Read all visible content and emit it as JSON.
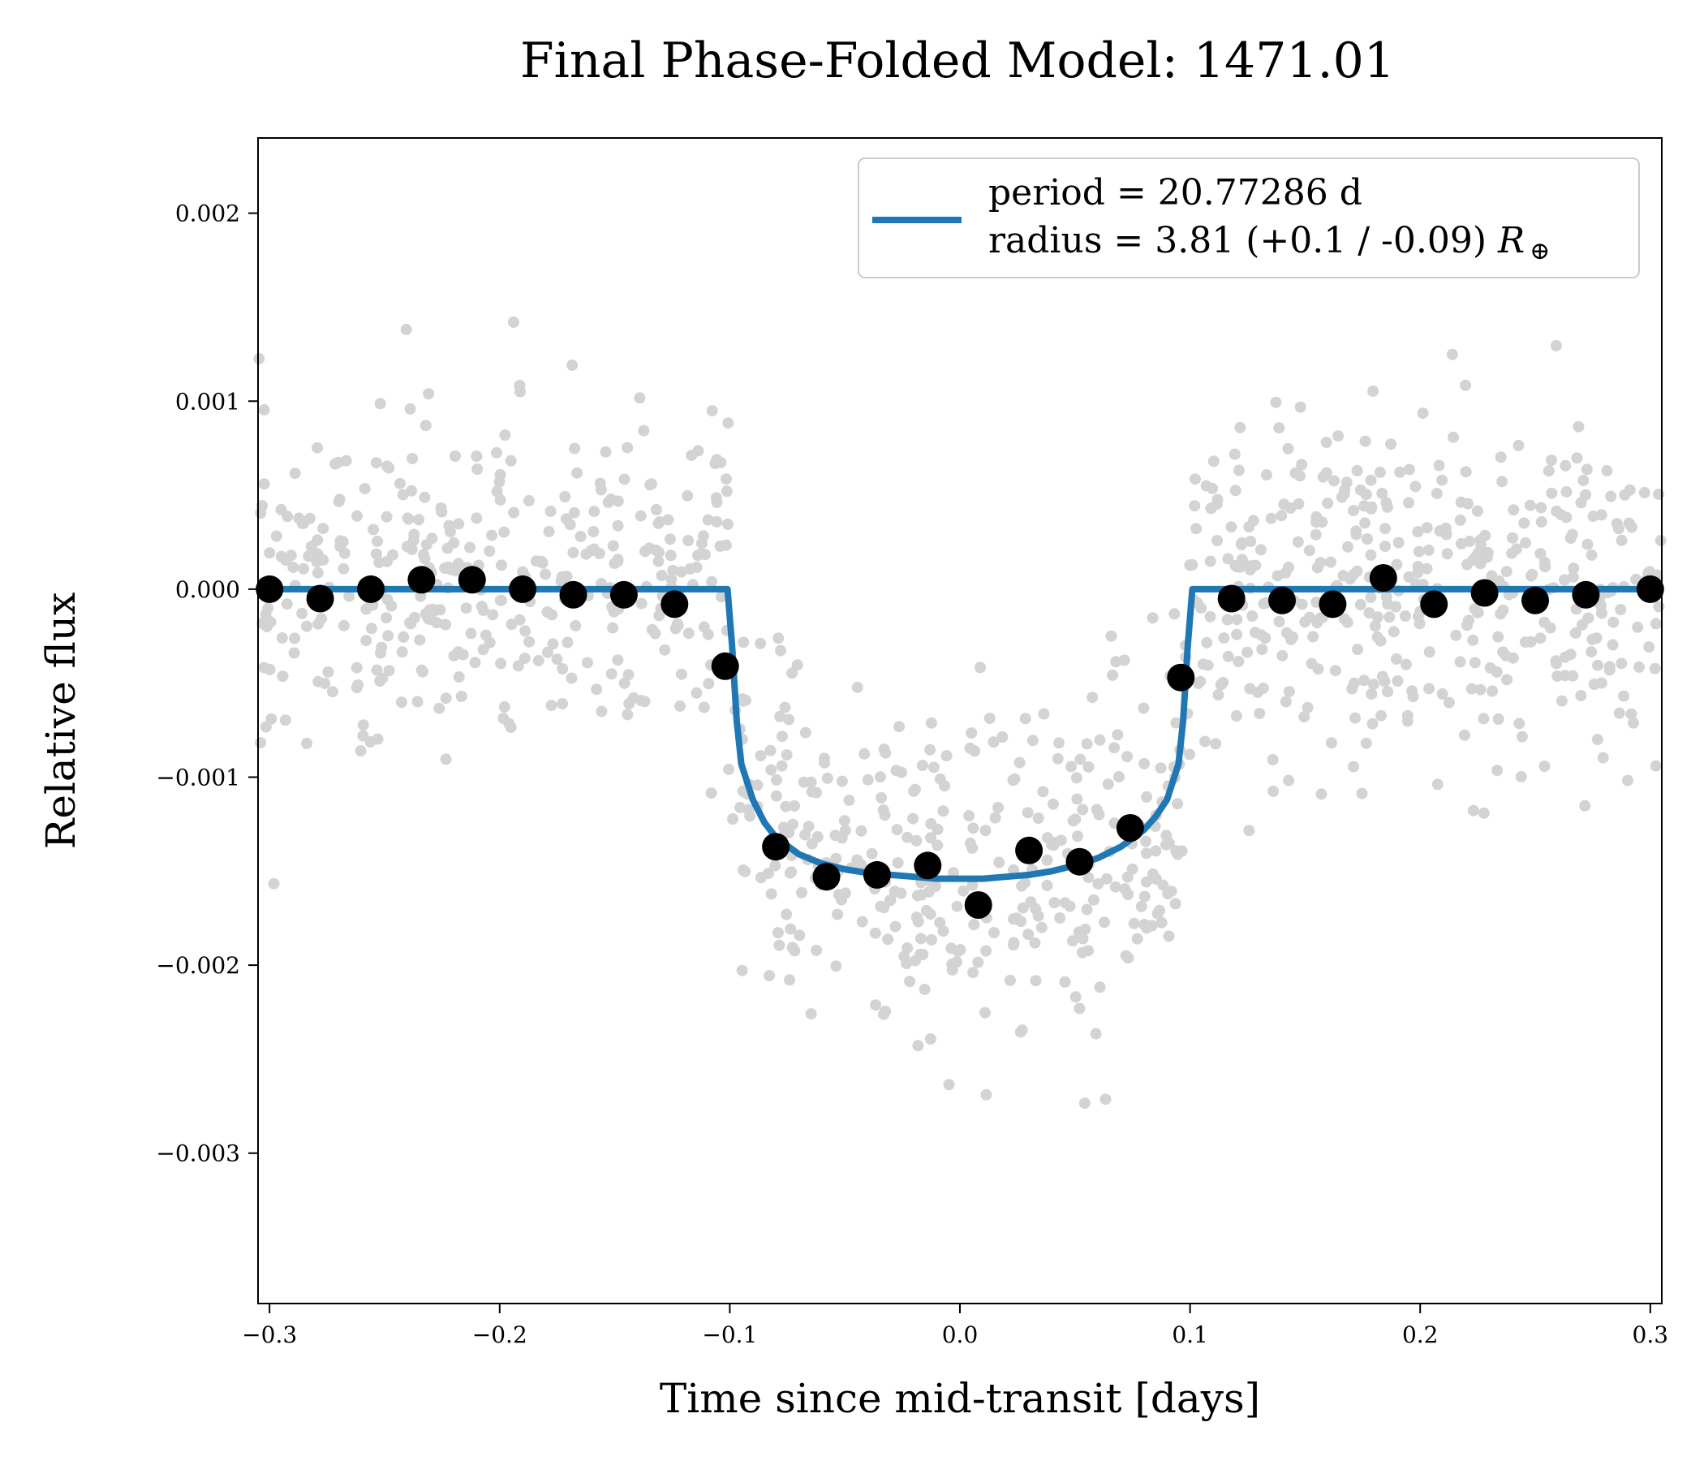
{
  "chart_data": {
    "type": "scatter",
    "title": "Final Phase-Folded Model: 1471.01",
    "xlabel": "Time since mid-transit [days]",
    "ylabel": "Relative flux",
    "xlim": [
      -0.305,
      0.305
    ],
    "ylim": [
      -0.0038,
      0.0024
    ],
    "x_ticks": [
      -0.3,
      -0.2,
      -0.1,
      0.0,
      0.1,
      0.2,
      0.3
    ],
    "x_tick_labels": [
      "−0.3",
      "−0.2",
      "−0.1",
      "0.0",
      "0.1",
      "0.2",
      "0.3"
    ],
    "y_ticks": [
      0.002,
      0.001,
      0.0,
      -0.001,
      -0.002,
      -0.003
    ],
    "y_tick_labels": [
      "0.002",
      "0.001",
      "0.000",
      "−0.001",
      "−0.002",
      "−0.003"
    ],
    "grid": false,
    "legend": {
      "position": "upper-right",
      "line1": "period = 20.77286 d",
      "line2_prefix": "radius = 3.81 (+0.1 / -0.09) ",
      "line2_symbol": "R",
      "line2_sub": "⊕"
    },
    "colors": {
      "model": "#1f77b4",
      "binned": "#000000",
      "raw": "#d3d3d3"
    },
    "series": [
      {
        "kind": "binned",
        "x": [
          -0.3,
          -0.278,
          -0.256,
          -0.234,
          -0.212,
          -0.19,
          -0.168,
          -0.146,
          -0.124,
          -0.102,
          -0.08,
          -0.058,
          -0.036,
          -0.014,
          0.008,
          0.03,
          0.052,
          0.074,
          0.096,
          0.118,
          0.14,
          0.162,
          0.184,
          0.206,
          0.228,
          0.25,
          0.272,
          0.3
        ],
        "y": [
          0.0,
          -5e-05,
          0.0,
          5e-05,
          5e-05,
          0.0,
          -3e-05,
          -3e-05,
          -8e-05,
          -0.00041,
          -0.00137,
          -0.00153,
          -0.00152,
          -0.00147,
          -0.00168,
          -0.00139,
          -0.00145,
          -0.00127,
          -0.00047,
          -5e-05,
          -6e-05,
          -8e-05,
          6e-05,
          -8e-05,
          -2e-05,
          -6e-05,
          -3e-05,
          0.0
        ]
      },
      {
        "kind": "model",
        "x": [
          -0.305,
          -0.101,
          -0.099,
          -0.097,
          -0.095,
          -0.09,
          -0.085,
          -0.08,
          -0.07,
          -0.06,
          -0.05,
          -0.04,
          -0.03,
          -0.02,
          -0.01,
          0.0,
          0.01,
          0.02,
          0.03,
          0.04,
          0.05,
          0.06,
          0.07,
          0.08,
          0.085,
          0.09,
          0.095,
          0.097,
          0.099,
          0.101,
          0.305
        ],
        "y": [
          0.0,
          0.0,
          -0.0003,
          -0.0007,
          -0.00093,
          -0.00112,
          -0.00124,
          -0.00132,
          -0.00141,
          -0.00146,
          -0.00149,
          -0.00151,
          -0.00152,
          -0.00153,
          -0.00154,
          -0.00154,
          -0.00154,
          -0.00153,
          -0.00152,
          -0.0015,
          -0.00147,
          -0.00143,
          -0.00137,
          -0.00128,
          -0.00121,
          -0.00112,
          -0.00093,
          -0.0007,
          -0.0003,
          0.0,
          0.0
        ]
      }
    ],
    "raw_points": {
      "count": 1150,
      "noise_sigma": 0.00045
    }
  }
}
